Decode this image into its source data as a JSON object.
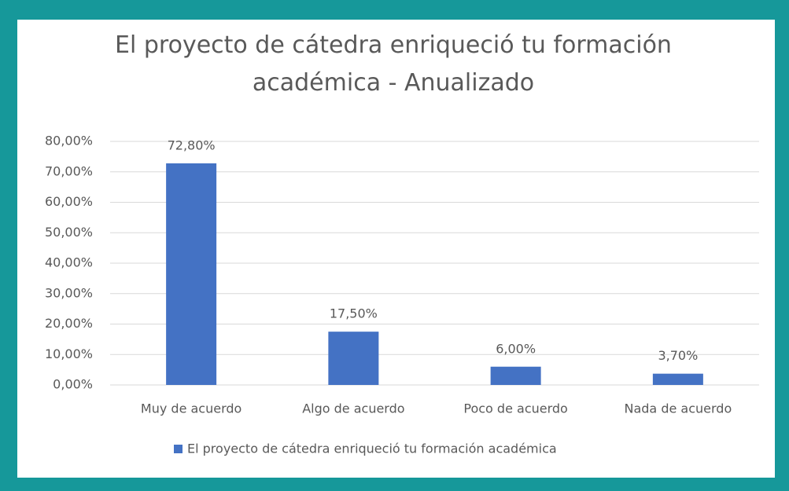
{
  "chart_data": {
    "type": "bar",
    "title": "El proyecto de cátedra enriqueció tu formación académica - Anualizado",
    "categories": [
      "Muy de acuerdo",
      "Algo de acuerdo",
      "Poco de acuerdo",
      "Nada de acuerdo"
    ],
    "series": [
      {
        "name": "El proyecto de cátedra enriqueció tu formación académica",
        "color": "#4472c4",
        "values": [
          72.8,
          17.5,
          6.0,
          3.7
        ],
        "value_labels": [
          "72,80%",
          "17,50%",
          "6,00%",
          "3,70%"
        ]
      }
    ],
    "ylim": [
      0,
      80
    ],
    "yticks": [
      {
        "value": 0,
        "label": "0,00%"
      },
      {
        "value": 10,
        "label": "10,00%"
      },
      {
        "value": 20,
        "label": "20,00%"
      },
      {
        "value": 30,
        "label": "30,00%"
      },
      {
        "value": 40,
        "label": "40,00%"
      },
      {
        "value": 50,
        "label": "50,00%"
      },
      {
        "value": 60,
        "label": "60,00%"
      },
      {
        "value": 70,
        "label": "70,00%"
      },
      {
        "value": 80,
        "label": "80,00%"
      }
    ],
    "grid": true,
    "legend": "bottom"
  }
}
